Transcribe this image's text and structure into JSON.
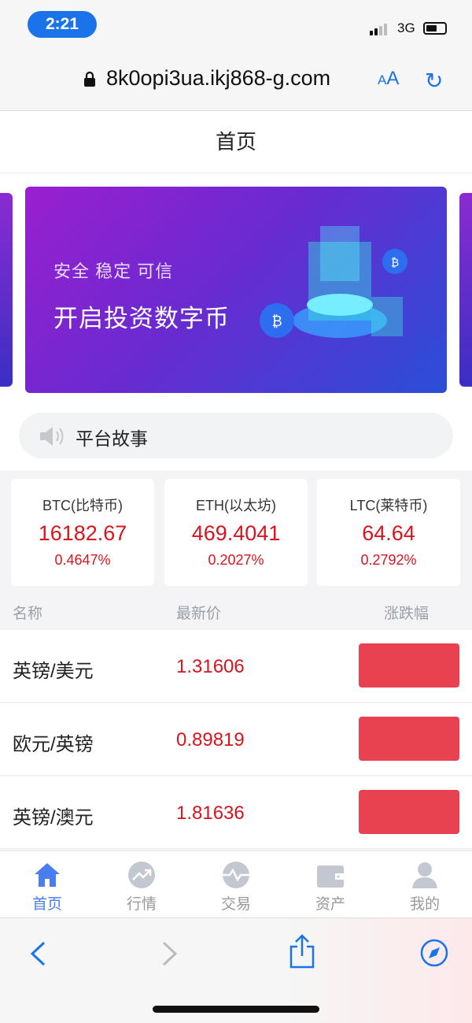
{
  "status_bar": {
    "time": "2:21",
    "network": "3G",
    "battery_level": 0.6
  },
  "browser": {
    "url": "8k0opi3ua.ikj868-g.com",
    "text_size_label": "AA"
  },
  "header": {
    "title": "首页"
  },
  "banner": {
    "line1": "安全 稳定 可信",
    "line2": "开启投资数字币"
  },
  "notice": {
    "text": "平台故事"
  },
  "tickers": [
    {
      "name": "BTC(比特币)",
      "price": "16182.67",
      "change": "0.4647%"
    },
    {
      "name": "ETH(以太坊)",
      "price": "469.4041",
      "change": "0.2027%"
    },
    {
      "name": "LTC(莱特币)",
      "price": "64.64",
      "change": "0.2792%"
    }
  ],
  "table": {
    "headers": [
      "名称",
      "最新价",
      "涨跌幅"
    ],
    "rows": [
      {
        "name": "英镑/美元",
        "price": "1.31606"
      },
      {
        "name": "欧元/英镑",
        "price": "0.89819"
      },
      {
        "name": "英镑/澳元",
        "price": "1.81636"
      }
    ]
  },
  "tabs": [
    {
      "label": "首页",
      "icon": "home-icon",
      "active": true
    },
    {
      "label": "行情",
      "icon": "trend-icon"
    },
    {
      "label": "交易",
      "icon": "trade-icon"
    },
    {
      "label": "资产",
      "icon": "wallet-icon"
    },
    {
      "label": "我的",
      "icon": "user-icon"
    }
  ],
  "colors": {
    "accent": "#4a7df0",
    "price_red": "#d8141e",
    "change_box": "#e84150",
    "safari_blue": "#1a73e8"
  }
}
